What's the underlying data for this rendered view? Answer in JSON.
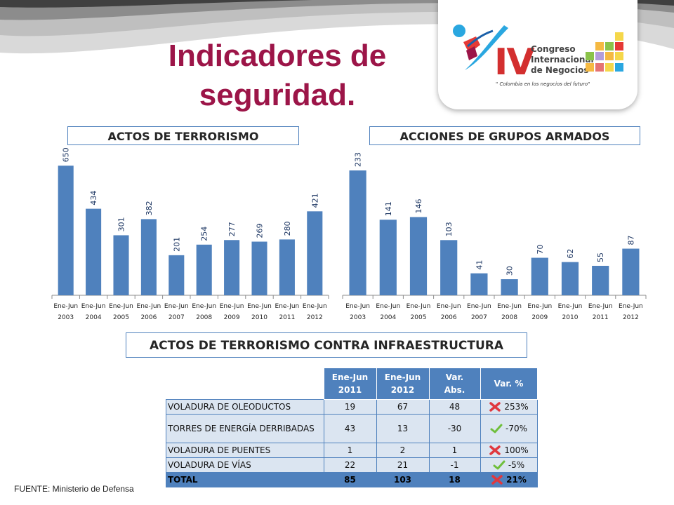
{
  "slide": {
    "title": "Indicadores de seguridad.",
    "source_note": "FUENTE:  Ministerio de Defensa"
  },
  "logo": {
    "numeral": "IV",
    "line1": "Congreso",
    "line2": "Internacional",
    "line3": "de Negocios",
    "tagline": "\" Colombia en los negocios del futuro\""
  },
  "colors": {
    "title": "#9c1548",
    "bar": "#4f81bd",
    "cell": "#dbe5f1",
    "up": "#e0383e",
    "down": "#6fbf3c"
  },
  "chart_data": [
    {
      "type": "bar",
      "title": "ACTOS DE TERRORISMO",
      "categories": [
        "Ene-Jun\n2003",
        "Ene-Jun\n2004",
        "Ene-Jun\n2005",
        "Ene-Jun\n2006",
        "Ene-Jun\n2007",
        "Ene-Jun\n2008",
        "Ene-Jun\n2009",
        "Ene-Jun\n2010",
        "Ene-Jun\n2011",
        "Ene-Jun\n2012"
      ],
      "values": [
        650,
        434,
        301,
        382,
        201,
        254,
        277,
        269,
        280,
        421
      ],
      "ylim": [
        0,
        700
      ],
      "data_labels": "vertical, above bars",
      "grid": false
    },
    {
      "type": "bar",
      "title": "ACCIONES DE GRUPOS ARMADOS",
      "categories": [
        "Ene-Jun\n2003",
        "Ene-Jun\n2004",
        "Ene-Jun\n2005",
        "Ene-Jun\n2006",
        "Ene-Jun\n2007",
        "Ene-Jun\n2008",
        "Ene-Jun\n2009",
        "Ene-Jun\n2010",
        "Ene-Jun\n2011",
        "Ene-Jun\n2012"
      ],
      "values": [
        233,
        141,
        146,
        103,
        41,
        30,
        70,
        62,
        55,
        87
      ],
      "ylim": [
        0,
        250
      ],
      "data_labels": "vertical, above bars",
      "grid": false
    },
    {
      "type": "table",
      "title": "ACTOS DE TERRORISMO CONTRA INFRAESTRUCTURA",
      "columns": [
        "Ene-Jun 2011",
        "Ene-Jun 2012",
        "Var. Abs.",
        "Var. %"
      ],
      "rows": [
        {
          "category": "VOLADURA DE OLEODUCTOS",
          "v2011": "19",
          "v2012": "67",
          "abs": "48",
          "pct": "253%",
          "trend": "up"
        },
        {
          "category": "TORRES DE ENERGÍA DERRIBADAS",
          "v2011": "43",
          "v2012": "13",
          "abs": "-30",
          "pct": "-70%",
          "trend": "down"
        },
        {
          "category": "VOLADURA DE PUENTES",
          "v2011": "1",
          "v2012": "2",
          "abs": "1",
          "pct": "100%",
          "trend": "up"
        },
        {
          "category": "VOLADURA DE VÍAS",
          "v2011": "22",
          "v2012": "21",
          "abs": "-1",
          "pct": "-5%",
          "trend": "down"
        },
        {
          "category": "TOTAL",
          "v2011": "85",
          "v2012": "103",
          "abs": "18",
          "pct": "21%",
          "trend": "up"
        }
      ]
    }
  ],
  "table_header": {
    "col1_line1": "Ene-Jun",
    "col1_line2": "2011",
    "col2_line1": "Ene-Jun",
    "col2_line2": "2012",
    "col3_line1": "Var.",
    "col3_line2": "Abs.",
    "col4": "Var. %"
  }
}
